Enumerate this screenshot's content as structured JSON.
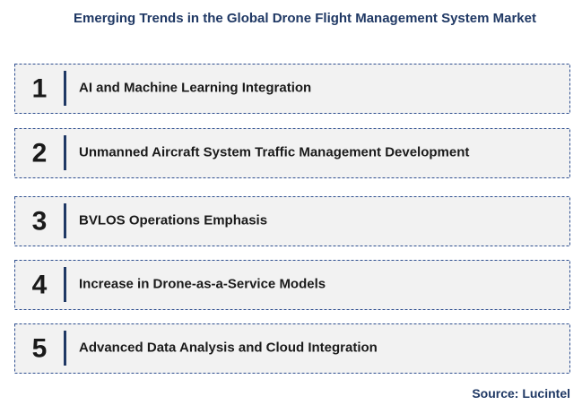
{
  "title": "Emerging Trends in the Global Drone Flight Management System Market",
  "items": [
    {
      "number": "1",
      "label": "AI and Machine Learning Integration"
    },
    {
      "number": "2",
      "label": "Unmanned Aircraft  System  Traffic Management Development"
    },
    {
      "number": "3",
      "label": "BVLOS Operations Emphasis"
    },
    {
      "number": "4",
      "label": "Increase in Drone-as-a-Service Models"
    },
    {
      "number": "5",
      "label": "Advanced Data Analysis and Cloud Integration"
    }
  ],
  "source": "Source: Lucintel"
}
